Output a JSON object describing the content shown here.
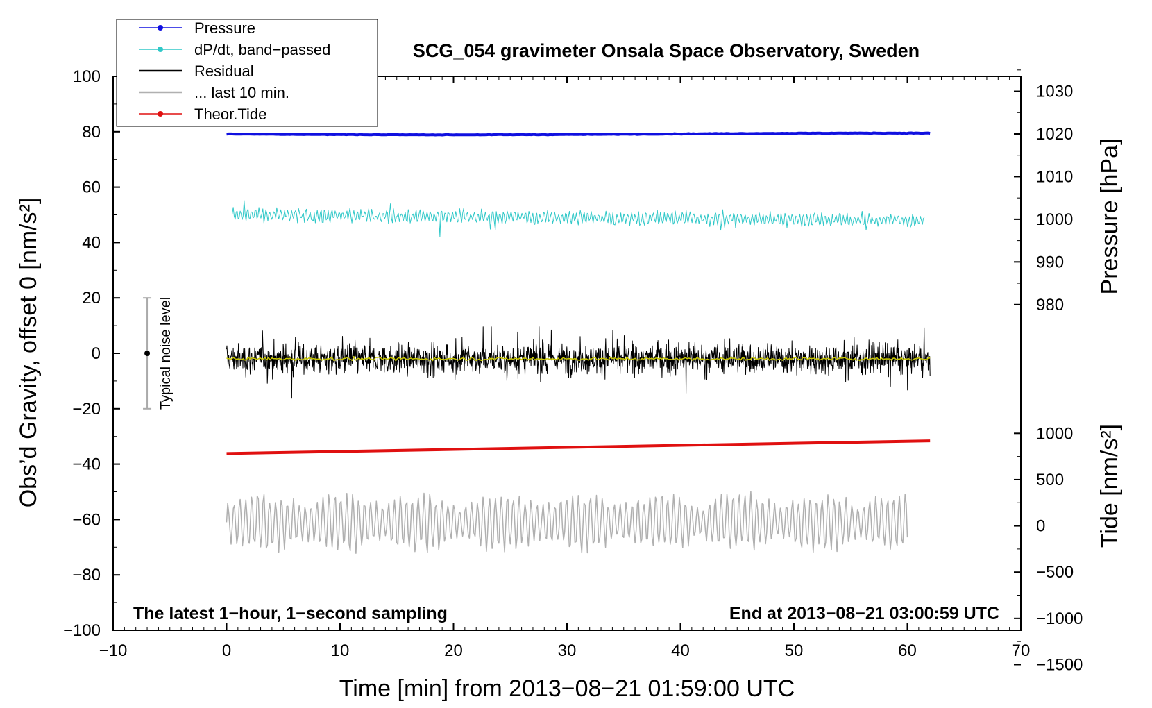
{
  "chart_data": {
    "type": "line",
    "title": "SCG_054 gravimeter Onsala Space Observatory, Sweden",
    "xlabel": "Time [min] from 2013−08−21 01:59:00 UTC",
    "ylabel": "Obs’d Gravity, offset 0 [nm/s²]",
    "xlim": [
      -10,
      70
    ],
    "ylim": [
      -100,
      100
    ],
    "xticks": [
      -10,
      0,
      10,
      20,
      30,
      40,
      50,
      60,
      70
    ],
    "xtick_labels": [
      "−10",
      "0",
      "10",
      "20",
      "30",
      "40",
      "50",
      "60",
      "70"
    ],
    "yticks": [
      -100,
      -80,
      -60,
      -40,
      -20,
      0,
      20,
      40,
      60,
      80,
      100
    ],
    "ytick_labels": [
      "−100",
      "−80",
      "−60",
      "−40",
      "−20",
      "0",
      "20",
      "40",
      "60",
      "80",
      "100"
    ],
    "pressure_axis": {
      "label": "Pressure [hPa]",
      "ticks": [
        980,
        990,
        1000,
        1010,
        1020,
        1030
      ],
      "tick_labels": [
        "980",
        "990",
        "1000",
        "1010",
        "1020",
        "1030"
      ]
    },
    "tide_axis": {
      "label": "Tide [nm/s²]",
      "ticks": [
        -1500,
        -1000,
        -500,
        0,
        500,
        1000
      ],
      "tick_labels": [
        "−1500",
        "−1000",
        "−500",
        "0",
        "500",
        "1000"
      ]
    },
    "legend": {
      "position": "top-left",
      "entries": [
        {
          "label": "Pressure",
          "color": "#1010e0",
          "marker": true
        },
        {
          "label": "dP/dt, band−passed",
          "color": "#30c8c8",
          "marker": true
        },
        {
          "label": "Residual",
          "color": "#000000",
          "marker": false
        },
        {
          "label": "... last 10 min.",
          "color": "#b0b0b0",
          "marker": false
        },
        {
          "label": "Theor.Tide",
          "color": "#e01010",
          "marker": true
        }
      ]
    },
    "series": [
      {
        "name": "Pressure",
        "color": "#1010e0",
        "x_range": [
          0,
          62
        ],
        "level": 79.2,
        "amplitude": 0.5
      },
      {
        "name": "dP/dt, band−passed",
        "color": "#30c8c8",
        "x_range": [
          0.5,
          61.5
        ],
        "level": 50,
        "amplitude": 3
      },
      {
        "name": "Residual",
        "color": "#000000",
        "x_range": [
          0,
          62
        ],
        "level": -2,
        "amplitude": 8
      },
      {
        "name": "Residual smoothed",
        "color": "#c8c800",
        "x_range": [
          0,
          62
        ],
        "level": -2,
        "amplitude": 0.8
      },
      {
        "name": "Theor.Tide",
        "color": "#e01010",
        "x_range": [
          0,
          62
        ],
        "start": -36.2,
        "end": -31.6
      },
      {
        "name": "... last 10 min.",
        "color": "#b0b0b0",
        "x_range": [
          0,
          60
        ],
        "level": -61,
        "amplitude": 10
      }
    ],
    "noise_level": {
      "label": "Typical noise level",
      "x": -7,
      "center": 0,
      "low": -20,
      "high": 20
    },
    "annotation_left": "The latest 1−hour, 1−second sampling",
    "annotation_right": "End at 2013−08−21 03:00:59 UTC"
  }
}
